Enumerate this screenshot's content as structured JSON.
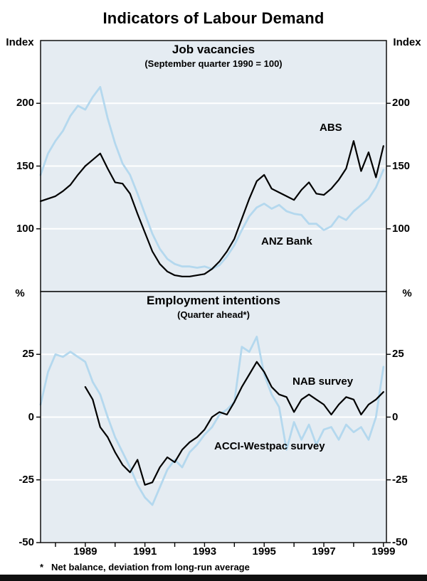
{
  "page": {
    "title": "Indicators of Labour Demand",
    "footnote_mark": "*",
    "footnote_text": "Net balance, deviation from long-run average"
  },
  "colors": {
    "plot_bg": "#e5ecf2",
    "grid": "#ffffff",
    "black": "#000000",
    "blue": "#b4d8ee"
  },
  "x_axis": {
    "domain": [
      1987.5,
      1999.1
    ],
    "labeled_ticks": [
      1989,
      1991,
      1993,
      1995,
      1997,
      1999
    ],
    "minor_from": 1988,
    "minor_to": 1999
  },
  "chart_data": [
    {
      "type": "line",
      "title": "Job vacancies",
      "subtitle": "(September quarter 1990 = 100)",
      "unit": "Index",
      "ylim": [
        50,
        250
      ],
      "yticks": [
        100,
        150,
        200
      ],
      "series": [
        {
          "name": "ABS",
          "color": "black",
          "start": 1987.5,
          "step": 0.25,
          "values": [
            122,
            124,
            126,
            130,
            135,
            143,
            150,
            155,
            160,
            148,
            137,
            136,
            128,
            112,
            97,
            82,
            72,
            66,
            63,
            62,
            62,
            63,
            64,
            68,
            74,
            82,
            92,
            108,
            124,
            138,
            143,
            132,
            129,
            126,
            123,
            131,
            137,
            128,
            127,
            132,
            139,
            148,
            170,
            146,
            161,
            141,
            166
          ]
        },
        {
          "name": "ANZ Bank",
          "color": "blue",
          "start": 1987.5,
          "step": 0.25,
          "values": [
            143,
            160,
            170,
            178,
            190,
            198,
            195,
            205,
            213,
            188,
            168,
            152,
            143,
            128,
            112,
            96,
            84,
            76,
            72,
            70,
            70,
            69,
            70,
            68,
            71,
            78,
            87,
            99,
            110,
            117,
            120,
            116,
            119,
            114,
            112,
            111,
            104,
            104,
            99,
            102,
            110,
            107,
            114,
            119,
            124,
            133,
            147
          ]
        }
      ]
    },
    {
      "type": "line",
      "title": "Employment intentions",
      "subtitle": "(Quarter ahead*)",
      "unit": "%",
      "ylim": [
        -50,
        50
      ],
      "yticks": [
        -50,
        -25,
        0,
        25
      ],
      "series": [
        {
          "name": "NAB survey",
          "color": "black",
          "start": 1989.0,
          "step": 0.25,
          "values": [
            12,
            7,
            -4,
            -8,
            -14,
            -19,
            -22,
            -17,
            -27,
            -26,
            -20,
            -16,
            -18,
            -13,
            -10,
            -8,
            -5,
            0,
            2,
            1,
            6,
            12,
            17,
            22,
            18,
            12,
            9,
            8,
            2,
            7,
            9,
            7,
            5,
            1,
            5,
            8,
            7,
            1,
            5,
            7,
            10
          ]
        },
        {
          "name": "ACCI-Westpac survey",
          "color": "blue",
          "start": 1987.5,
          "step": 0.25,
          "values": [
            5,
            18,
            25,
            24,
            26,
            24,
            22,
            14,
            9,
            0,
            -8,
            -14,
            -20,
            -27,
            -32,
            -35,
            -28,
            -21,
            -17,
            -20,
            -14,
            -11,
            -7,
            -4,
            1,
            3,
            6,
            28,
            26,
            32,
            17,
            9,
            4,
            -13,
            -2,
            -9,
            -3,
            -11,
            -5,
            -4,
            -9,
            -3,
            -6,
            -4,
            -9,
            0,
            20
          ]
        }
      ]
    }
  ]
}
